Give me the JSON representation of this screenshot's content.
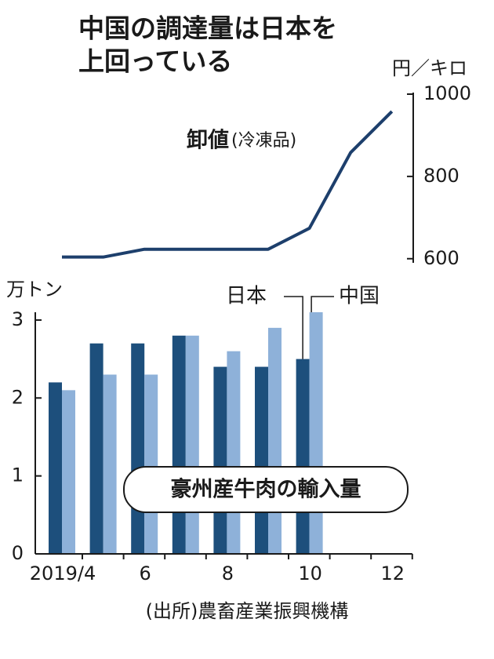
{
  "chart_data": {
    "type": "bar-line",
    "title": [
      "中国の調達量は日本を",
      "上回っている"
    ],
    "categories": [
      "2019/4",
      null,
      "6",
      null,
      "8",
      null,
      "10",
      null,
      "12"
    ],
    "series": [
      {
        "name": "日本",
        "type": "bar",
        "color": "#1d4f7c",
        "values": [
          2.2,
          2.7,
          2.7,
          2.8,
          2.4,
          2.4,
          2.5,
          null,
          null
        ]
      },
      {
        "name": "中国",
        "type": "bar",
        "color": "#8eb1d9",
        "values": [
          2.1,
          2.3,
          2.3,
          2.8,
          2.6,
          2.9,
          3.1,
          null,
          null
        ]
      },
      {
        "name": "卸値",
        "type": "line",
        "axis": "y2",
        "color": "#1d3f6c",
        "values": [
          604,
          604,
          623,
          623,
          623,
          623,
          674,
          858,
          958
        ]
      }
    ],
    "line_note": "(冷凍品)",
    "ylabel": "万トン",
    "ylim": [
      0,
      3.1
    ],
    "yticks": [
      0,
      1,
      2,
      3
    ],
    "y2label": "円／キロ",
    "y2lim": [
      590,
      1000
    ],
    "y2ticks": [
      600,
      800,
      1000
    ],
    "annotation": "豪州産牛肉の輸入量",
    "source": "(出所)農畜産業振興機構"
  }
}
